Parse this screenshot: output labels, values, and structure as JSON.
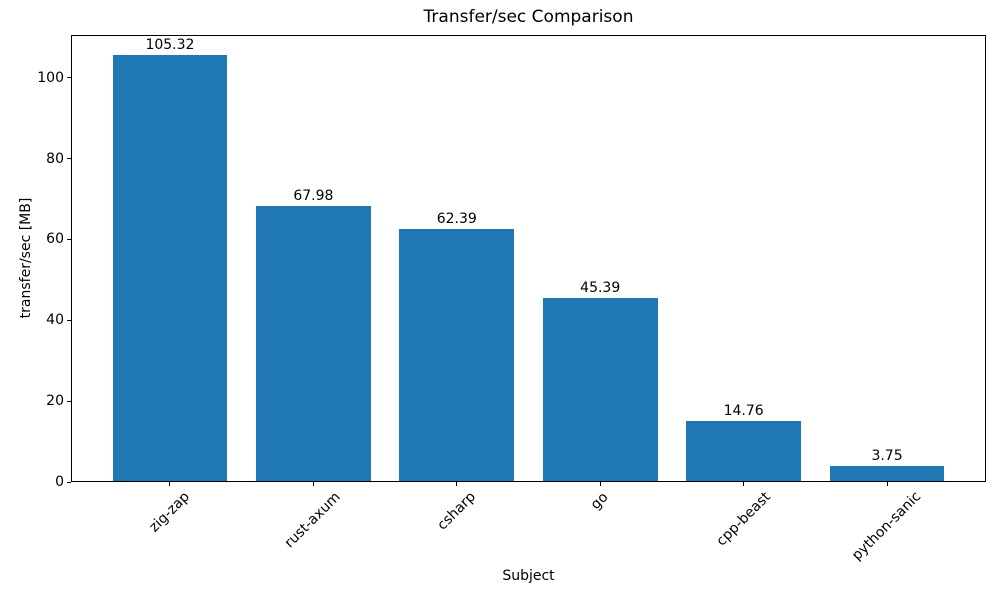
{
  "chart_data": {
    "type": "bar",
    "title": "Transfer/sec Comparison",
    "xlabel": "Subject",
    "ylabel": "transfer/sec [MB]",
    "categories": [
      "zig-zap",
      "rust-axum",
      "csharp",
      "go",
      "cpp-beast",
      "python-sanic"
    ],
    "values": [
      105.32,
      67.98,
      62.39,
      45.39,
      14.76,
      3.75
    ],
    "bar_labels": [
      "105.32",
      "67.98",
      "62.39",
      "45.39",
      "14.76",
      "3.75"
    ],
    "yticks": [
      0,
      20,
      40,
      60,
      80,
      100
    ],
    "ytick_labels": [
      "0",
      "20",
      "40",
      "60",
      "80",
      "100"
    ],
    "ylim": [
      0,
      110.59
    ],
    "xtick_rotation_deg": 45,
    "bar_color": "#1f77b4",
    "text_color": "#000000",
    "spine_color": "#000000",
    "background_color": "#ffffff",
    "grid": false,
    "legend_position": "none"
  }
}
